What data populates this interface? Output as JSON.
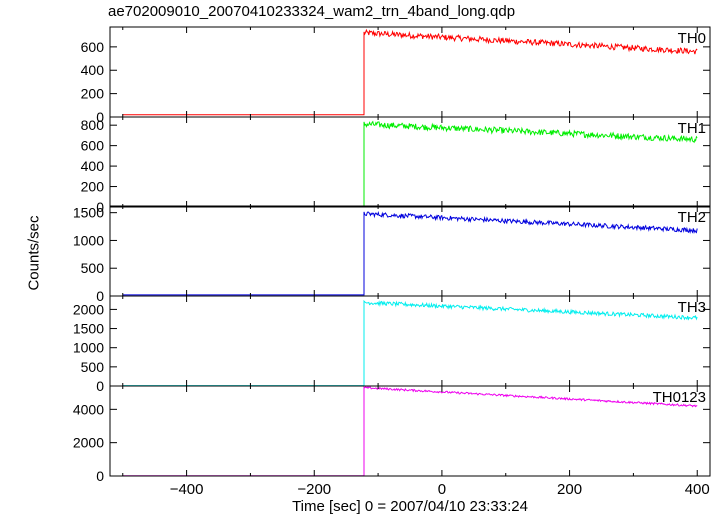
{
  "title": "ae702009010_20070410233324_wam2_trn_4band_long.qdp",
  "ylabel": "Counts/sec",
  "xlabel": "Time [sec] 0 = 2007/04/10 23:33:24",
  "chart_data": {
    "type": "line",
    "title": "ae702009010_20070410233324_wam2_trn_4band_long.qdp",
    "xlabel": "Time [sec] 0 = 2007/04/10 23:33:24",
    "ylabel": "Counts/sec",
    "xlim": [
      -520,
      420
    ],
    "xticks": [
      -400,
      -200,
      0,
      200,
      400
    ],
    "x_start": -500,
    "x_end": 400,
    "step_time": -122,
    "panels": [
      {
        "name": "TH0",
        "color": "#ff0000",
        "ylim": [
          0,
          770
        ],
        "yticks": [
          0,
          200,
          400,
          600
        ],
        "pre_level": 20,
        "peak": 720,
        "end_level": 560,
        "noise": 25
      },
      {
        "name": "TH1",
        "color": "#00ee00",
        "ylim": [
          0,
          880
        ],
        "yticks": [
          0,
          200,
          400,
          600,
          800
        ],
        "pre_level": 5,
        "peak": 810,
        "end_level": 660,
        "noise": 30
      },
      {
        "name": "TH2",
        "color": "#0000dd",
        "ylim": [
          0,
          1620
        ],
        "yticks": [
          0,
          500,
          1000,
          1500
        ],
        "pre_level": 20,
        "peak": 1480,
        "end_level": 1180,
        "noise": 40
      },
      {
        "name": "TH3",
        "color": "#00eeee",
        "ylim": [
          0,
          2350
        ],
        "yticks": [
          0,
          500,
          1000,
          1500,
          2000
        ],
        "pre_level": 10,
        "peak": 2180,
        "end_level": 1780,
        "noise": 50
      },
      {
        "name": "TH0123",
        "color": "#ee00ee",
        "ylim": [
          0,
          5400
        ],
        "yticks": [
          0,
          2000,
          4000
        ],
        "pre_level": 20,
        "peak": 5300,
        "end_level": 4200,
        "noise": 60
      }
    ]
  }
}
